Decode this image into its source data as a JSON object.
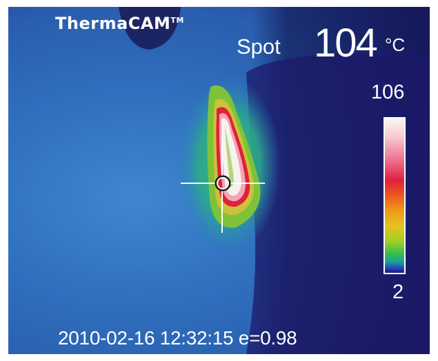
{
  "camera": {
    "brand": "ThermaCAM",
    "trademark": "TM"
  },
  "measurement": {
    "label": "Spot",
    "value": "104",
    "unit": "°C"
  },
  "scale": {
    "max": "106",
    "min": "2"
  },
  "footer": {
    "datetime": "2010-02-16 12:32:15",
    "emissivity": "e=0.98"
  },
  "colors": {
    "cool_background": "#2f6fbd",
    "dark_region": "#1a1660",
    "hotspot_core": "#f6f2f0",
    "hotspot_ring": "#e0203c",
    "crosshair": "#ffffff"
  }
}
